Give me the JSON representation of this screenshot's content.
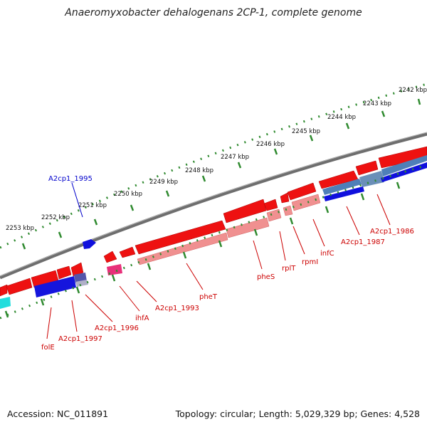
{
  "title": "Anaeromyxobacter dehalogenans 2CP-1, complete genome",
  "footer": {
    "accession": "Accession: NC_011891",
    "summary": "Topology: circular; Length: 5,029,329 bp; Genes: 4,528"
  },
  "ruler": {
    "ticks": [
      "2242 kbp",
      "2243 kbp",
      "2244 kbp",
      "2245 kbp",
      "2246 kbp",
      "2247 kbp",
      "2248 kbp",
      "2249 kbp",
      "2250 kbp",
      "2251 kbp",
      "2252 kbp",
      "2253 kbp"
    ]
  },
  "gene_labels": [
    {
      "name": "A2cp1_1995",
      "strand": "forward"
    },
    {
      "name": "pheT",
      "strand": "reverse"
    },
    {
      "name": "pheS",
      "strand": "reverse"
    },
    {
      "name": "rplT",
      "strand": "reverse"
    },
    {
      "name": "rpmI",
      "strand": "reverse"
    },
    {
      "name": "infC",
      "strand": "reverse"
    },
    {
      "name": "A2cp1_1987",
      "strand": "reverse"
    },
    {
      "name": "A2cp1_1986",
      "strand": "reverse"
    },
    {
      "name": "A2cp1_1993",
      "strand": "reverse"
    },
    {
      "name": "ihfA",
      "strand": "reverse"
    },
    {
      "name": "A2cp1_1996",
      "strand": "reverse"
    },
    {
      "name": "A2cp1_1997",
      "strand": "reverse"
    },
    {
      "name": "folE",
      "strand": "reverse"
    }
  ],
  "colors": {
    "backbone": "#7a7a7a",
    "cds_red": "#ee1111",
    "cds_light": "#f09090",
    "cds_blue": "#1010dd",
    "cds_steel": "#4f7fb8",
    "cds_pink": "#e8307a",
    "cds_cyan": "#22dddd",
    "tick": "#2f8a2f",
    "label_red": "#cc0000",
    "label_blue": "#0000cc"
  }
}
